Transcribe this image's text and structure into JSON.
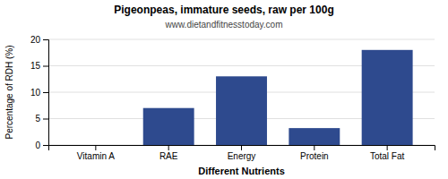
{
  "chart_data": {
    "type": "bar",
    "title": "Pigeonpeas, immature seeds, raw per 100g",
    "subtitle": "www.dietandfitnesstoday.com",
    "xlabel": "Different Nutrients",
    "ylabel": "Percentage of RDH (%)",
    "categories": [
      "Vitamin A",
      "RAE",
      "Energy",
      "Protein",
      "Total Fat"
    ],
    "values": [
      0,
      7,
      13,
      3.2,
      18
    ],
    "color": "#2e4a8e",
    "ylim": [
      0,
      20
    ],
    "yticks": [
      0,
      5,
      10,
      15,
      20
    ],
    "grid": true
  }
}
